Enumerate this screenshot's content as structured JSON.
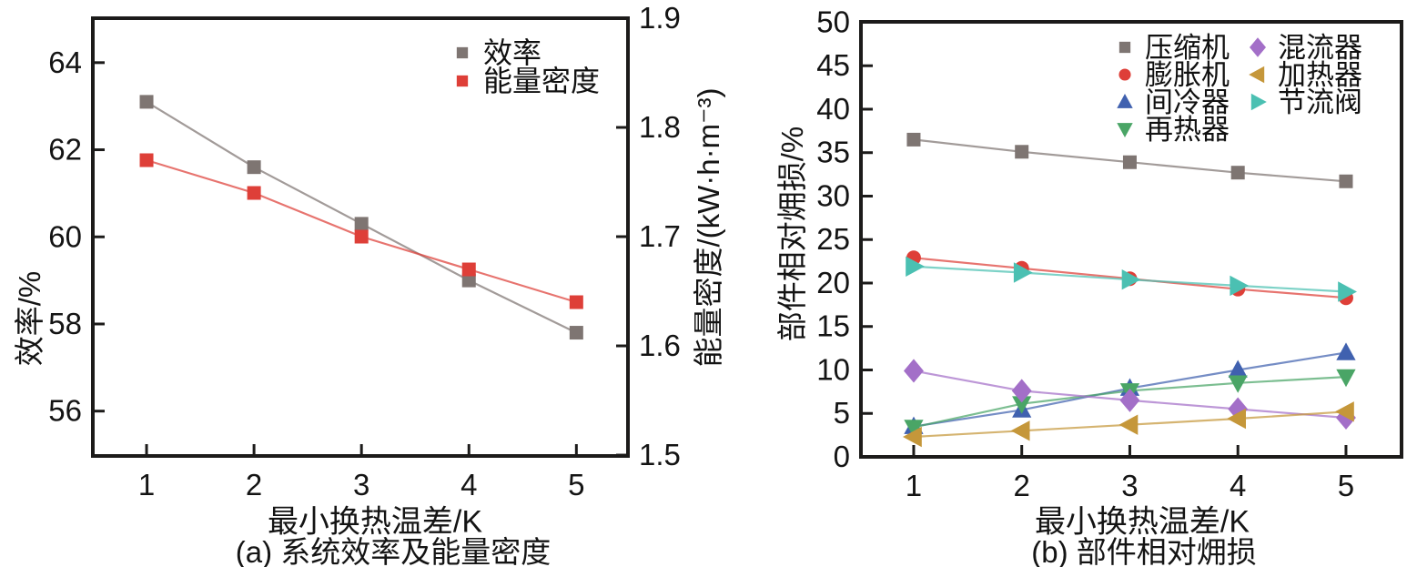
{
  "figure": {
    "background": "#ffffff",
    "text_color": "#141414",
    "spine_color": "#1c1b1a"
  },
  "chart_data": [
    {
      "id": "a",
      "type": "line",
      "title": "(a) 系统效率及能量密度",
      "xlabel": "最小换热温差/K",
      "ylabel_left": "效率/%",
      "ylabel_right": "能量密度/(kW·h·m⁻³)",
      "x": [
        1,
        2,
        3,
        4,
        5
      ],
      "xlim": [
        0.5,
        5.48
      ],
      "xticks": {
        "values": [
          1,
          2,
          3,
          4,
          5
        ],
        "labels": [
          "1",
          "2",
          "3",
          "4",
          "5"
        ]
      },
      "grid": false,
      "axes": {
        "left": {
          "lim": [
            54.97,
            65.02
          ],
          "ticks": [
            56,
            58,
            60,
            62,
            64
          ],
          "labels": [
            "56",
            "58",
            "60",
            "62",
            "64"
          ]
        },
        "right": {
          "lim": [
            1.4992,
            1.9
          ],
          "ticks": [
            1.5,
            1.6,
            1.7,
            1.8,
            1.9
          ],
          "labels": [
            "1.5",
            "1.6",
            "1.7",
            "1.8",
            "1.9"
          ]
        }
      },
      "series": [
        {
          "name": "效率",
          "axis": "left",
          "marker": "square",
          "color": "#7E7572",
          "values": [
            63.1,
            61.6,
            60.3,
            59.0,
            57.8
          ]
        },
        {
          "name": "能量密度",
          "axis": "right",
          "marker": "square",
          "color": "#DE3F38",
          "values": [
            1.77,
            1.74,
            1.7,
            1.67,
            1.64
          ]
        }
      ],
      "legend": {
        "position": "top-right",
        "columns": [
          [
            "效率",
            "能量密度"
          ]
        ]
      }
    },
    {
      "id": "b",
      "type": "line",
      "title": "(b) 部件相对㶲损",
      "xlabel": "最小换热温差/K",
      "ylabel_left": "部件相对㶲损/%",
      "x": [
        1,
        2,
        3,
        4,
        5
      ],
      "xlim": [
        0.512,
        5.514
      ],
      "xticks": {
        "values": [
          1,
          2,
          3,
          4,
          5
        ],
        "labels": [
          "1",
          "2",
          "3",
          "4",
          "5"
        ]
      },
      "grid": false,
      "axes": {
        "left": {
          "lim": [
            0,
            50.05
          ],
          "ticks": [
            0,
            5,
            10,
            15,
            20,
            25,
            30,
            35,
            40,
            45,
            50
          ],
          "labels": [
            "0",
            "5",
            "10",
            "15",
            "20",
            "25",
            "30",
            "35",
            "40",
            "45",
            "50"
          ]
        }
      },
      "series": [
        {
          "name": "压缩机",
          "axis": "left",
          "marker": "square",
          "color": "#7E7572",
          "values": [
            36.5,
            35.1,
            33.9,
            32.7,
            31.7
          ]
        },
        {
          "name": "膨胀机",
          "axis": "left",
          "marker": "circle",
          "color": "#DE3F38",
          "values": [
            22.9,
            21.7,
            20.5,
            19.3,
            18.3
          ]
        },
        {
          "name": "间冷器",
          "axis": "left",
          "marker": "triangle-up",
          "color": "#4061AF",
          "values": [
            3.5,
            5.4,
            7.9,
            10.0,
            12.0
          ]
        },
        {
          "name": "再热器",
          "axis": "left",
          "marker": "triangle-down",
          "color": "#4AA566",
          "values": [
            3.4,
            6.1,
            7.6,
            8.5,
            9.2
          ]
        },
        {
          "name": "混流器",
          "axis": "left",
          "marker": "diamond",
          "color": "#A36FC8",
          "values": [
            9.9,
            7.6,
            6.5,
            5.5,
            4.5
          ]
        },
        {
          "name": "加热器",
          "axis": "left",
          "marker": "triangle-left",
          "color": "#C5973A",
          "values": [
            2.3,
            3.0,
            3.7,
            4.4,
            5.2
          ]
        },
        {
          "name": "节流阀",
          "axis": "left",
          "marker": "triangle-right",
          "color": "#4BC0B2",
          "values": [
            21.9,
            21.2,
            20.4,
            19.7,
            19.0
          ]
        }
      ],
      "legend": {
        "position": "top-right",
        "columns": [
          [
            "压缩机",
            "膨胀机",
            "间冷器",
            "再热器"
          ],
          [
            "混流器",
            "加热器",
            "节流阀"
          ]
        ]
      }
    }
  ]
}
